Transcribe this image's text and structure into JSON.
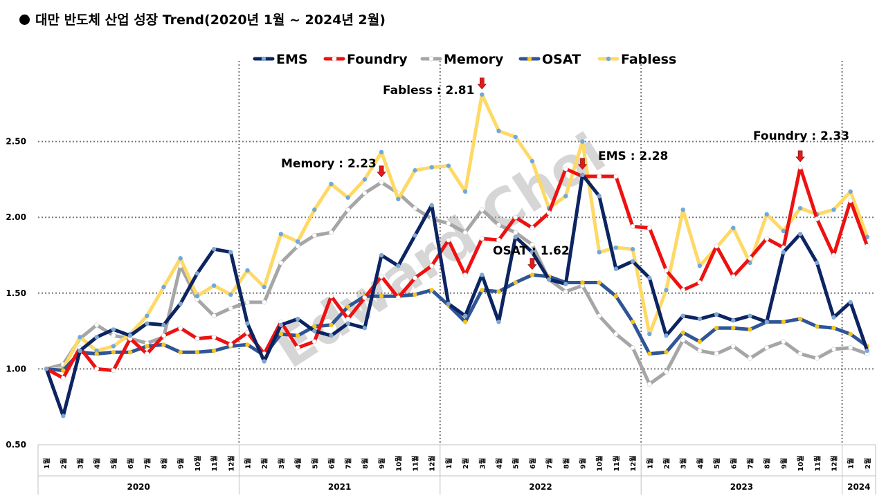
{
  "chart_data": {
    "type": "line",
    "title": "대만 반도체 산업 성장 Trend(2020년 1월 ~ 2024년 2월)",
    "watermark": "Edward Choi",
    "ylim": [
      0.5,
      3.0
    ],
    "yticks": [
      "0.50",
      "1.00",
      "1.50",
      "2.00",
      "2.50"
    ],
    "ytick_values": [
      0.5,
      1.0,
      1.5,
      2.0,
      2.5
    ],
    "grid": "dotted horizontal",
    "legend_position": "top",
    "years": [
      {
        "label": "2020",
        "months": 12
      },
      {
        "label": "2021",
        "months": 12
      },
      {
        "label": "2022",
        "months": 12
      },
      {
        "label": "2023",
        "months": 12
      },
      {
        "label": "2024",
        "months": 2
      }
    ],
    "month_labels": [
      "1월",
      "2월",
      "3월",
      "4월",
      "5월",
      "6월",
      "7월",
      "8월",
      "9월",
      "10월",
      "11월",
      "12월"
    ],
    "series": [
      {
        "name": "EMS",
        "color": "#0c2461",
        "marker": "#7fa7d0",
        "values": [
          1.0,
          0.69,
          1.12,
          1.21,
          1.26,
          1.22,
          1.3,
          1.29,
          1.43,
          1.63,
          1.79,
          1.77,
          1.3,
          1.05,
          1.29,
          1.33,
          1.25,
          1.22,
          1.3,
          1.27,
          1.75,
          1.68,
          1.88,
          2.08,
          1.43,
          1.35,
          1.62,
          1.31,
          1.87,
          1.77,
          1.59,
          1.56,
          2.28,
          2.14,
          1.66,
          1.71,
          1.6,
          1.22,
          1.35,
          1.33,
          1.36,
          1.32,
          1.35,
          1.31,
          1.77,
          1.89,
          1.7,
          1.34,
          1.44,
          1.12
        ]
      },
      {
        "name": "Foundry",
        "color": "#ee1111",
        "marker": "#ffffff",
        "values": [
          1.0,
          0.94,
          1.14,
          1.0,
          0.99,
          1.2,
          1.1,
          1.22,
          1.27,
          1.2,
          1.21,
          1.16,
          1.24,
          1.1,
          1.31,
          1.14,
          1.18,
          1.48,
          1.33,
          1.47,
          1.61,
          1.47,
          1.6,
          1.68,
          1.85,
          1.62,
          1.86,
          1.85,
          2.0,
          1.93,
          2.03,
          2.32,
          2.27,
          2.27,
          2.27,
          1.94,
          1.93,
          1.65,
          1.52,
          1.57,
          1.81,
          1.61,
          1.73,
          1.86,
          1.8,
          2.33,
          1.99,
          1.75,
          2.11,
          1.81
        ]
      },
      {
        "name": "Memory",
        "color": "#a6a6a6",
        "marker": "#ffffff",
        "values": [
          1.0,
          1.03,
          1.2,
          1.29,
          1.22,
          1.2,
          1.17,
          1.21,
          1.68,
          1.46,
          1.35,
          1.4,
          1.44,
          1.44,
          1.7,
          1.81,
          1.88,
          1.9,
          2.05,
          2.16,
          2.23,
          2.16,
          2.06,
          1.99,
          1.96,
          1.9,
          2.05,
          1.95,
          1.9,
          1.82,
          1.59,
          1.51,
          1.55,
          1.35,
          1.23,
          1.14,
          0.9,
          0.98,
          1.19,
          1.12,
          1.1,
          1.15,
          1.07,
          1.14,
          1.18,
          1.1,
          1.07,
          1.13,
          1.14,
          1.1
        ]
      },
      {
        "name": "OSAT",
        "color": "#2f5597",
        "marker": "#f5c518",
        "values": [
          1.0,
          0.99,
          1.11,
          1.1,
          1.11,
          1.11,
          1.15,
          1.16,
          1.11,
          1.11,
          1.12,
          1.15,
          1.16,
          1.09,
          1.23,
          1.22,
          1.28,
          1.29,
          1.41,
          1.48,
          1.48,
          1.48,
          1.49,
          1.52,
          1.42,
          1.31,
          1.52,
          1.51,
          1.57,
          1.62,
          1.61,
          1.57,
          1.57,
          1.57,
          1.48,
          1.31,
          1.1,
          1.11,
          1.24,
          1.18,
          1.27,
          1.27,
          1.26,
          1.31,
          1.31,
          1.33,
          1.28,
          1.27,
          1.23,
          1.15
        ]
      },
      {
        "name": "Fabless",
        "color": "#ffd966",
        "marker": "#6fa8dc",
        "values": [
          1.0,
          1.0,
          1.21,
          1.12,
          1.15,
          1.23,
          1.35,
          1.54,
          1.73,
          1.48,
          1.55,
          1.49,
          1.65,
          1.54,
          1.89,
          1.84,
          2.05,
          2.22,
          2.13,
          2.25,
          2.43,
          2.12,
          2.31,
          2.33,
          2.34,
          2.17,
          2.81,
          2.57,
          2.53,
          2.37,
          2.06,
          2.14,
          2.5,
          1.77,
          1.8,
          1.79,
          1.23,
          1.52,
          2.05,
          1.68,
          1.8,
          1.93,
          1.7,
          2.02,
          1.91,
          2.06,
          2.02,
          2.05,
          2.17,
          1.87
        ]
      }
    ],
    "annotations": [
      {
        "text": "Fabless : 2.81",
        "series": "Fabless",
        "index": 26
      },
      {
        "text": "Memory : 2.23",
        "series": "Memory",
        "index": 20
      },
      {
        "text": "EMS : 2.28",
        "series": "EMS",
        "index": 32
      },
      {
        "text": "OSAT : 1.62",
        "series": "OSAT",
        "index": 29
      },
      {
        "text": "Foundry : 2.33",
        "series": "Foundry",
        "index": 45
      }
    ]
  }
}
